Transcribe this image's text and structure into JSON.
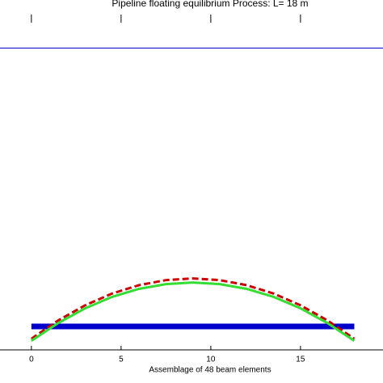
{
  "chart_data": {
    "type": "line",
    "title": "Pipeline floating equilibrium Process: L= 18 m",
    "x_label": "Assemblage of 48 beam elements",
    "xlim": [
      -1.75,
      19.6
    ],
    "ylim": [
      0,
      10
    ],
    "xticks": [
      0,
      5,
      10,
      15
    ],
    "series": [
      {
        "color": "#0000cc",
        "width": 1,
        "dash": "",
        "x": [
          -1.75,
          19.6
        ],
        "values": [
          9,
          9
        ]
      },
      {
        "color": "#0000cc",
        "width": 7,
        "dash": "",
        "x": [
          0,
          18
        ],
        "values": [
          0.7,
          0.7
        ]
      },
      {
        "color": "#cc0000",
        "width": 3,
        "dash": "8,4",
        "x": [
          0,
          1.5,
          3,
          4.5,
          6,
          7.5,
          9,
          10.5,
          12,
          13.5,
          15,
          16.5,
          18
        ],
        "values": [
          0.33,
          0.88,
          1.33,
          1.68,
          1.93,
          2.08,
          2.13,
          2.08,
          1.93,
          1.68,
          1.33,
          0.88,
          0.33
        ]
      },
      {
        "color": "#33dd33",
        "width": 3,
        "dash": "",
        "x": [
          0,
          1.5,
          3,
          4.5,
          6,
          7.5,
          9,
          10.5,
          12,
          13.5,
          15,
          16.5,
          18
        ],
        "values": [
          0.27,
          0.8,
          1.24,
          1.58,
          1.82,
          1.96,
          2.01,
          1.96,
          1.82,
          1.58,
          1.24,
          0.8,
          0.27
        ]
      }
    ]
  }
}
